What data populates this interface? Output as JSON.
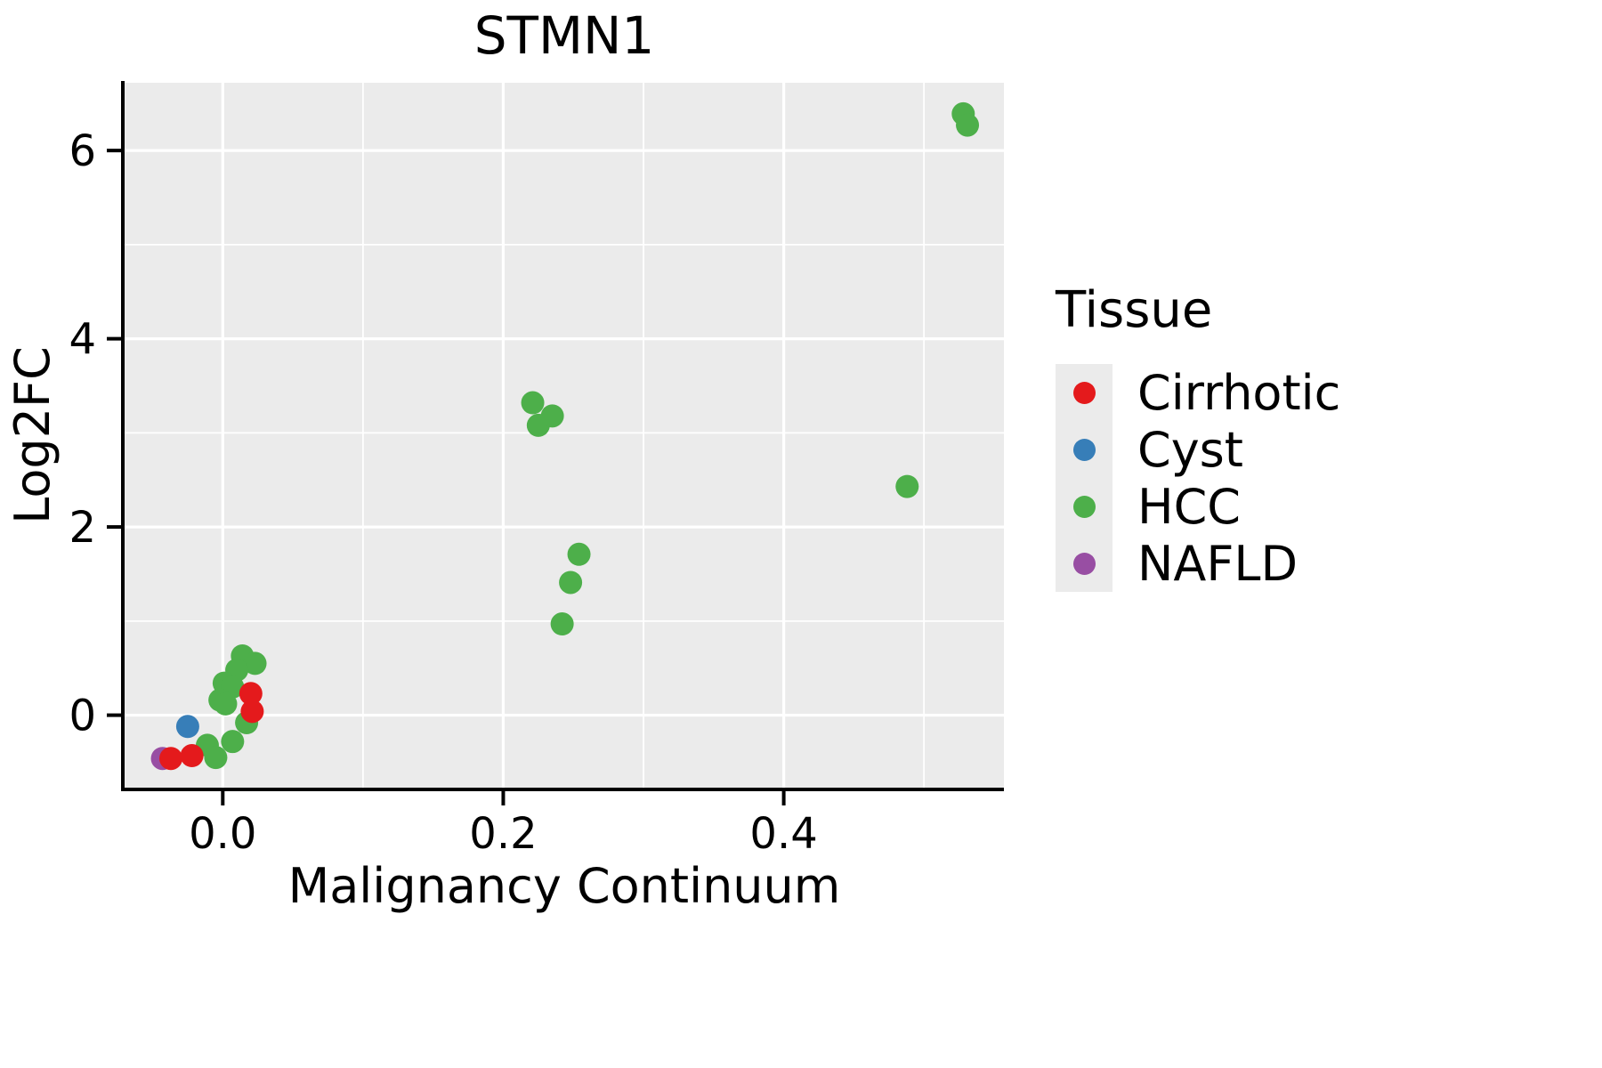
{
  "title": "STMN1",
  "axes": {
    "x_label": "Malignancy Continuum",
    "y_label": "Log2FC"
  },
  "legend": {
    "title": "Tissue",
    "items": [
      {
        "label": "Cirrhotic",
        "color": "#E41A1C"
      },
      {
        "label": "Cyst",
        "color": "#377EB8"
      },
      {
        "label": "HCC",
        "color": "#4DAF4A"
      },
      {
        "label": "NAFLD",
        "color": "#984EA3"
      }
    ]
  },
  "chart_data": {
    "type": "scatter",
    "title": "STMN1",
    "xlabel": "Malignancy Continuum",
    "ylabel": "Log2FC",
    "xlim": [
      -0.07,
      0.557
    ],
    "ylim": [
      -0.77,
      6.72
    ],
    "xticks": [
      0.0,
      0.2,
      0.4
    ],
    "xtick_labels": [
      "0.0",
      "0.2",
      "0.4"
    ],
    "yticks": [
      0,
      2,
      4,
      6
    ],
    "ytick_labels": [
      "0",
      "2",
      "4",
      "6"
    ],
    "xticks_minor": [
      0.1,
      0.3,
      0.5
    ],
    "yticks_minor": [
      1,
      3,
      5
    ],
    "grid": true,
    "legend_position": "right",
    "panel_bg": "#EBEBEB",
    "grid_color": "#FFFFFF",
    "point_radius": 13,
    "draw_order": [
      2,
      3,
      1,
      0
    ],
    "series": [
      {
        "name": "Cirrhotic",
        "color": "#E41A1C",
        "points": [
          [
            -0.037,
            -0.46
          ],
          [
            -0.022,
            -0.43
          ],
          [
            0.02,
            0.23
          ],
          [
            0.021,
            0.04
          ]
        ]
      },
      {
        "name": "Cyst",
        "color": "#377EB8",
        "points": [
          [
            -0.025,
            -0.12
          ]
        ]
      },
      {
        "name": "HCC",
        "color": "#4DAF4A",
        "points": [
          [
            0.528,
            6.39
          ],
          [
            0.531,
            6.27
          ],
          [
            0.221,
            3.32
          ],
          [
            0.225,
            3.08
          ],
          [
            0.235,
            3.18
          ],
          [
            0.488,
            2.43
          ],
          [
            0.254,
            1.71
          ],
          [
            0.248,
            1.41
          ],
          [
            0.242,
            0.97
          ],
          [
            0.014,
            0.63
          ],
          [
            0.023,
            0.55
          ],
          [
            0.01,
            0.48
          ],
          [
            0.001,
            0.34
          ],
          [
            0.007,
            0.3
          ],
          [
            -0.002,
            0.16
          ],
          [
            0.002,
            0.12
          ],
          [
            0.017,
            -0.08
          ],
          [
            0.007,
            -0.28
          ],
          [
            -0.011,
            -0.32
          ],
          [
            -0.005,
            -0.45
          ]
        ]
      },
      {
        "name": "NAFLD",
        "color": "#984EA3",
        "points": [
          [
            -0.043,
            -0.46
          ]
        ]
      }
    ]
  }
}
